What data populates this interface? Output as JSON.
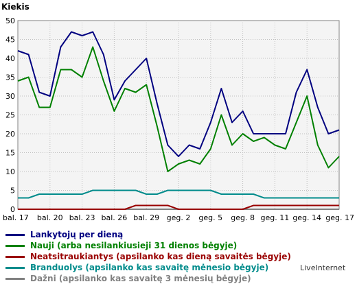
{
  "chart_data": {
    "type": "line",
    "title": "",
    "ylabel": "Kiekis",
    "xlabel": "",
    "ylim": [
      0,
      50
    ],
    "yticks": [
      0,
      5,
      10,
      15,
      20,
      25,
      30,
      35,
      40,
      45,
      50
    ],
    "grid": true,
    "legend_position": "bottom",
    "x_tick_labels": [
      "bal. 17",
      "bal. 20",
      "bal. 23",
      "bal. 26",
      "bal. 29",
      "geg. 2",
      "geg. 5",
      "geg. 8",
      "geg. 11",
      "geg. 14",
      "geg. 17"
    ],
    "series": [
      {
        "name": "Lankytojų per dieną",
        "color": "#000080",
        "values": [
          42,
          41,
          31,
          30,
          43,
          47,
          46,
          47,
          41,
          29,
          34,
          37,
          40,
          28,
          17,
          14,
          17,
          16,
          23,
          32,
          23,
          26,
          20,
          20,
          20,
          20,
          31,
          37,
          27,
          20,
          21
        ]
      },
      {
        "name": "Nauji (arba nesilankiusieji 31 dienos bėgyje)",
        "color": "#008000",
        "values": [
          34,
          35,
          27,
          27,
          37,
          37,
          35,
          43,
          34,
          26,
          32,
          31,
          33,
          22,
          10,
          12,
          13,
          12,
          16,
          25,
          17,
          20,
          18,
          19,
          17,
          16,
          23,
          30,
          17,
          11,
          14
        ]
      },
      {
        "name": "Neatsitraukiantys (apsilanko kas dieną savaitės bėgyje)",
        "color": "#990000",
        "values": [
          0,
          0,
          0,
          0,
          0,
          0,
          0,
          0,
          0,
          0,
          0,
          1,
          1,
          1,
          1,
          0,
          0,
          0,
          0,
          0,
          0,
          0,
          1,
          1,
          1,
          1,
          1,
          1,
          1,
          1,
          1
        ]
      },
      {
        "name": "Branduolys (apsilanko kas savaitę mėnesio bėgyje)",
        "color": "#008b8b",
        "values": [
          3,
          3,
          4,
          4,
          4,
          4,
          4,
          5,
          5,
          5,
          5,
          5,
          4,
          4,
          5,
          5,
          5,
          5,
          5,
          4,
          4,
          4,
          4,
          3,
          3,
          3,
          3,
          3,
          3,
          3,
          3
        ]
      },
      {
        "name": "Dažni (apsilanko kas savaitę 3 mėnesių bėgyje)",
        "color": "#808080",
        "values": [
          0,
          0,
          0,
          0,
          0,
          0,
          0,
          0,
          0,
          0,
          0,
          0,
          0,
          0,
          0,
          0,
          0,
          0,
          0,
          0,
          0,
          0,
          0,
          0,
          0,
          0,
          0,
          0,
          0,
          0,
          0
        ]
      }
    ]
  },
  "branding": "LiveInternet"
}
